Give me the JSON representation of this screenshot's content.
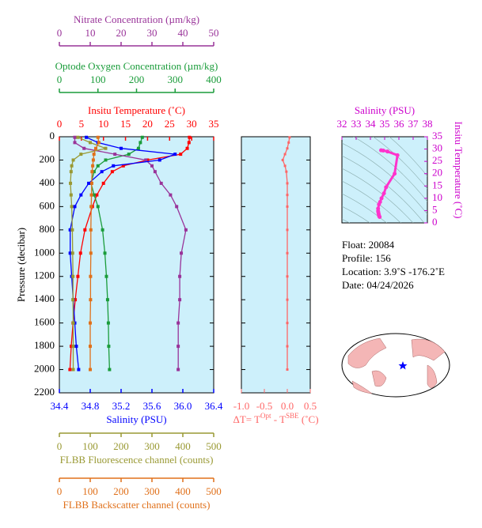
{
  "chart_data": [
    {
      "type": "profile",
      "ylabel": "Pressure (decibar)",
      "ylim": [
        0,
        2200
      ],
      "yticks": [
        0,
        200,
        400,
        600,
        800,
        1000,
        1200,
        1400,
        1600,
        1800,
        2000,
        2200
      ],
      "pressure": [
        5,
        50,
        100,
        150,
        200,
        250,
        300,
        400,
        500,
        600,
        800,
        1000,
        1200,
        1400,
        1600,
        1800,
        2000
      ],
      "series": [
        {
          "name": "Insitu Temperature (˚C)",
          "color": "#ff0000",
          "axis_side": "top",
          "xlim": [
            0,
            35
          ],
          "xticks": [
            0,
            5,
            10,
            15,
            20,
            25,
            30,
            35
          ],
          "values": [
            29.5,
            29.4,
            29.0,
            27.5,
            20.0,
            14.5,
            12.0,
            10.0,
            8.5,
            7.5,
            5.8,
            4.8,
            4.2,
            3.6,
            3.1,
            2.7,
            2.4
          ]
        },
        {
          "name": "Optode Oxygen Concentration (µm/kg)",
          "color": "#1a9c3a",
          "axis_side": "top",
          "xlim": [
            0,
            400
          ],
          "xticks": [
            0,
            100,
            200,
            300,
            400
          ],
          "values": [
            215,
            210,
            205,
            180,
            120,
            100,
            90,
            82,
            90,
            100,
            112,
            118,
            122,
            125,
            127,
            128,
            130
          ]
        },
        {
          "name": "Nitrate Concentration (µm/kg)",
          "color": "#993399",
          "axis_side": "top",
          "xlim": [
            0,
            50
          ],
          "xticks": [
            0,
            10,
            20,
            30,
            40,
            50
          ],
          "values": [
            5,
            5,
            8,
            18,
            28,
            30,
            31,
            33,
            36,
            38,
            41,
            39.5,
            39,
            39,
            38.5,
            38.5,
            38.5
          ]
        },
        {
          "name": "Salinity (PSU)",
          "color": "#0000ff",
          "axis_side": "bottom",
          "xlim": [
            34.4,
            36.4
          ],
          "xticks": [
            34.4,
            34.8,
            35.2,
            35.6,
            {
              "value": 36,
              "label": "36.0"
            },
            36.4
          ],
          "values": [
            34.75,
            34.9,
            35.2,
            35.9,
            35.7,
            35.1,
            34.95,
            34.78,
            34.68,
            34.6,
            34.54,
            34.54,
            34.56,
            34.58,
            34.6,
            34.62,
            34.65
          ]
        },
        {
          "name": "FLBB Fluorescence channel (counts)",
          "color": "#999933",
          "axis_side": "bottom",
          "xlim": [
            0,
            500
          ],
          "xticks": [
            0,
            100,
            200,
            300,
            400,
            500
          ],
          "values": [
            60,
            100,
            150,
            70,
            45,
            40,
            38,
            36,
            38,
            40,
            42,
            43,
            44,
            44,
            45,
            45,
            45
          ]
        },
        {
          "name": "FLBB Backscatter channel (counts)",
          "color": "#e0701a",
          "axis_side": "bottom",
          "xlim": [
            0,
            500
          ],
          "xticks": [
            0,
            100,
            200,
            300,
            400,
            500
          ],
          "values": [
            125,
            128,
            118,
            112,
            110,
            108,
            106,
            105,
            104,
            103,
            102,
            102,
            101,
            101,
            100,
            100,
            100
          ]
        }
      ]
    },
    {
      "type": "profile",
      "xlabel_parts": [
        "ΔT= T",
        "Opt",
        " - T",
        "SBE",
        " (˚C)"
      ],
      "color": "#ff6666",
      "xlim": [
        -1,
        0.5
      ],
      "xticks": [
        {
          "value": -1,
          "label": "-1.0"
        },
        -0.5,
        {
          "value": 0,
          "label": "0.0"
        },
        0.5
      ],
      "values": [
        0.05,
        0.03,
        0.0,
        -0.05,
        -0.1,
        -0.05,
        -0.02,
        0.0,
        0.0,
        0.0,
        0.0,
        0.0,
        0.0,
        0.0,
        0.0,
        0.0,
        0.0
      ]
    },
    {
      "type": "scatter",
      "title": "Salinity (PSU)",
      "ylabel": "Insitu Temperature (˚C)",
      "color": "#ff33cc",
      "xlim": [
        32,
        38
      ],
      "xticks": [
        32,
        33,
        34,
        35,
        36,
        37,
        38
      ],
      "ylim": [
        0,
        35
      ],
      "yticks": [
        0,
        5,
        10,
        15,
        20,
        25,
        30,
        35
      ]
    }
  ],
  "float_info": [
    "Float:  20084",
    "Profile:  156",
    "Location:  3.9˚S  -176.2˚E",
    "Date:  04/24/2026"
  ]
}
